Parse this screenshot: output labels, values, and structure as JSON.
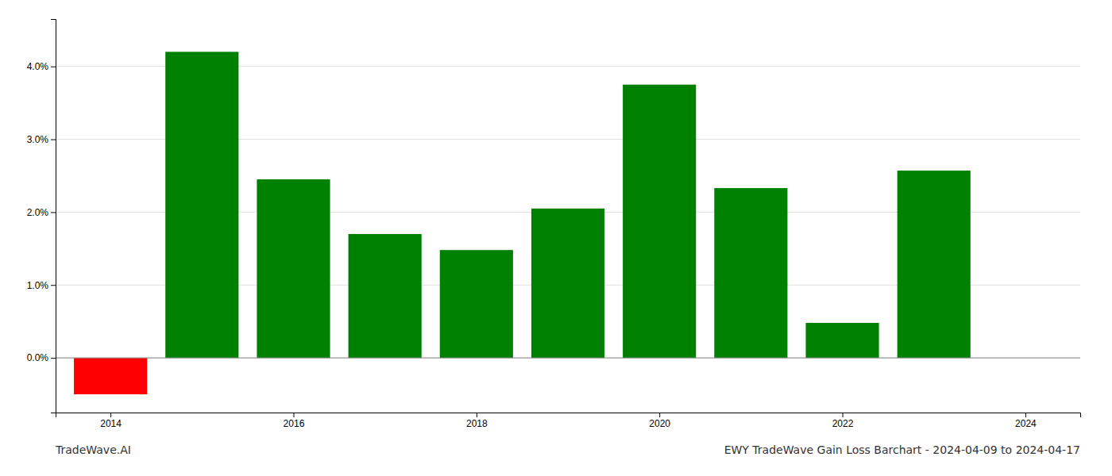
{
  "chart_data": {
    "type": "bar",
    "title": "EWY TradeWave Gain Loss Barchart - 2024-04-09 to 2024-04-17",
    "annotations": [
      "TradeWave.AI"
    ],
    "x": [
      2014,
      2015,
      2016,
      2017,
      2018,
      2019,
      2020,
      2021,
      2022,
      2023
    ],
    "values": [
      -0.5,
      4.2,
      2.45,
      1.7,
      1.48,
      2.05,
      3.75,
      2.33,
      0.48,
      2.57
    ],
    "colors": [
      "#ff0000",
      "#008000",
      "#008000",
      "#008000",
      "#008000",
      "#008000",
      "#008000",
      "#008000",
      "#008000",
      "#008000"
    ],
    "xlim": [
      2013.4,
      2024.6
    ],
    "xticks": [
      2014,
      2016,
      2018,
      2020,
      2022,
      2024
    ],
    "ylim": [
      -0.75,
      4.65
    ],
    "yticks": [
      {
        "value": 0,
        "label": "0.0%"
      },
      {
        "value": 1,
        "label": "1.0%"
      },
      {
        "value": 2,
        "label": "2.0%"
      },
      {
        "value": 3,
        "label": "3.0%"
      },
      {
        "value": 4,
        "label": "4.0%"
      }
    ],
    "grid": true
  }
}
